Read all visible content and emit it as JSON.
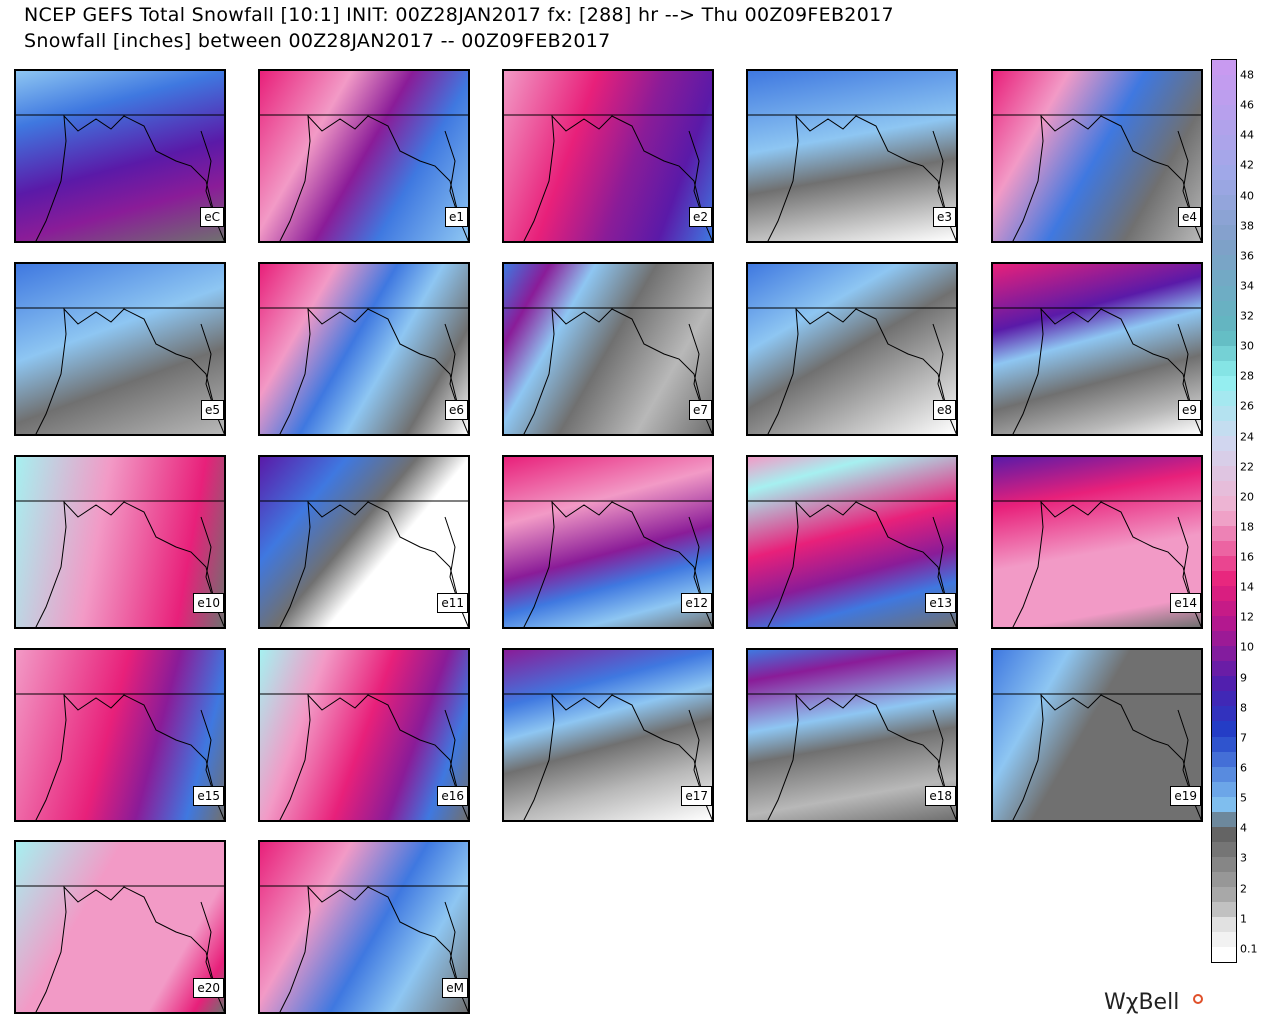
{
  "header": {
    "line1": "NCEP GEFS Total Snowfall [10:1] INIT: 00Z28JAN2017 fx: [288] hr --> Thu 00Z09FEB2017",
    "line2": "Snowfall [inches] between 00Z28JAN2017 -- 00Z09FEB2017"
  },
  "panels": [
    {
      "label": "eC"
    },
    {
      "label": "e1"
    },
    {
      "label": "e2"
    },
    {
      "label": "e3"
    },
    {
      "label": "e4"
    },
    {
      "label": "e5"
    },
    {
      "label": "e6"
    },
    {
      "label": "e7"
    },
    {
      "label": "e8"
    },
    {
      "label": "e9"
    },
    {
      "label": "e10"
    },
    {
      "label": "e11"
    },
    {
      "label": "e12"
    },
    {
      "label": "e13"
    },
    {
      "label": "e14"
    },
    {
      "label": "e15"
    },
    {
      "label": "e16"
    },
    {
      "label": "e17"
    },
    {
      "label": "e18"
    },
    {
      "label": "e19"
    },
    {
      "label": "e20"
    },
    {
      "label": "eM"
    }
  ],
  "colorbar": {
    "labels": [
      "48",
      "46",
      "44",
      "42",
      "40",
      "38",
      "36",
      "34",
      "32",
      "30",
      "28",
      "26",
      "24",
      "22",
      "20",
      "18",
      "16",
      "14",
      "12",
      "10",
      "9",
      "8",
      "7",
      "6",
      "5",
      "4",
      "3",
      "2",
      "1",
      "0.1"
    ]
  },
  "logo": "WχBell"
}
